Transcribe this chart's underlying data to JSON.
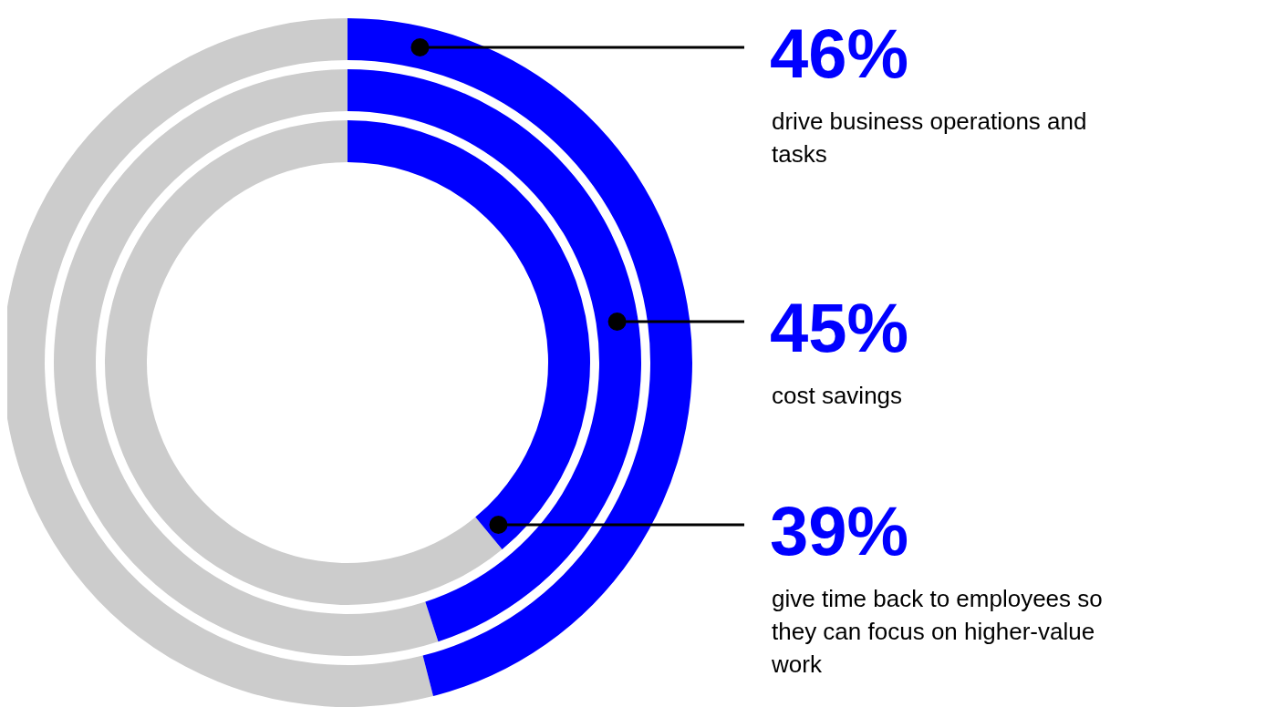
{
  "chart_data": [
    {
      "type": "donut",
      "categories": [
        "drive business operations and tasks",
        null
      ],
      "values": [
        46,
        54
      ],
      "colors": [
        "#0000ff",
        "#cccccc"
      ],
      "value_labels": [
        "46%",
        null
      ]
    },
    {
      "type": "donut",
      "categories": [
        "cost savings",
        null
      ],
      "values": [
        45,
        55
      ],
      "colors": [
        "#0000ff",
        "#cccccc"
      ],
      "value_labels": [
        "45%",
        null
      ]
    },
    {
      "type": "donut",
      "categories": [
        "give time back to employees so they can focus on higher-value work",
        null
      ],
      "values": [
        39,
        61
      ],
      "colors": [
        "#0000ff",
        "#cccccc"
      ],
      "value_labels": [
        "39%",
        null
      ]
    }
  ]
}
